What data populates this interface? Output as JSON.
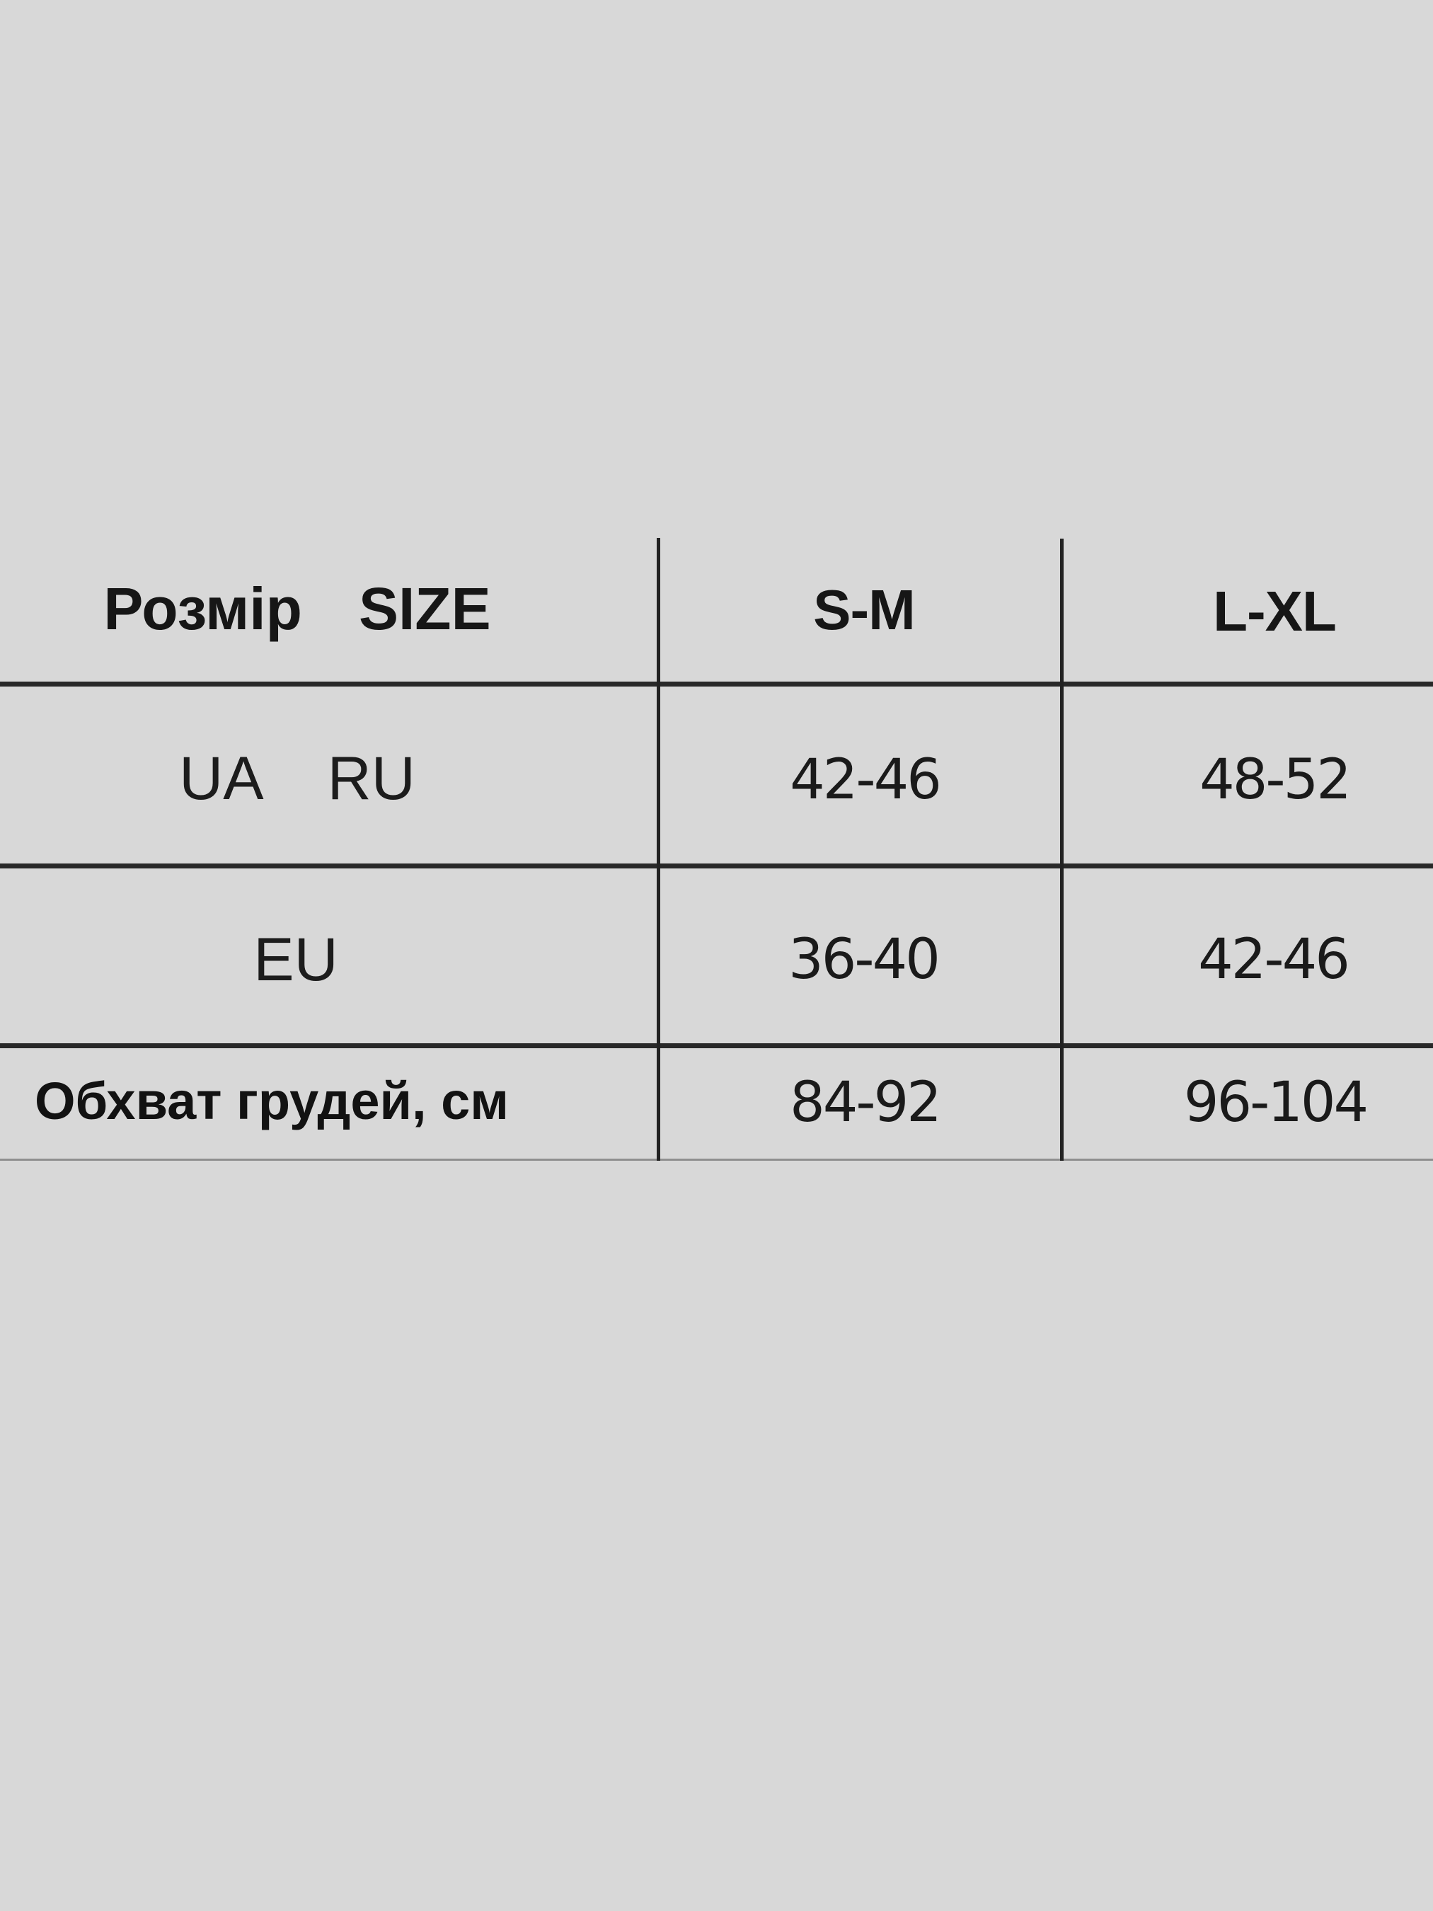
{
  "page": {
    "background_color": "#d8d8d8",
    "grid_line_color": "#282828",
    "bottom_rule_color": "#8f8f8f"
  },
  "size_chart": {
    "header": {
      "size_label_ua": "Розмір",
      "size_label_en": "SIZE",
      "col_sm": "S-M",
      "col_lxl": "L-XL"
    },
    "rows": [
      {
        "label_a": "UA",
        "label_b": "RU",
        "sm": "42-46",
        "lxl": "48-52"
      },
      {
        "label_a": "EU",
        "sm": "36-40",
        "lxl": "42-46"
      },
      {
        "label": "Обхват грудей, см",
        "sm": "84-92",
        "lxl": "96-104"
      }
    ]
  }
}
